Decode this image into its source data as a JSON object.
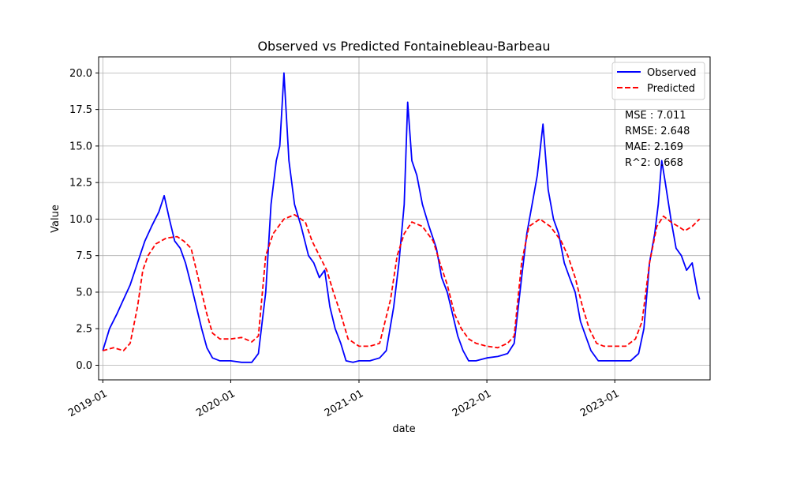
{
  "chart_data": {
    "type": "line",
    "title": "Observed vs Predicted Fontainebleau-Barbeau",
    "xlabel": "date",
    "ylabel": "Value",
    "x_range": [
      "2018-12-20",
      "2023-09-30"
    ],
    "ylim": [
      -1.0,
      21.1
    ],
    "grid": true,
    "legend_position": "top-right",
    "x_ticks": [
      {
        "date": "2019-01-01",
        "label": "2019-01"
      },
      {
        "date": "2020-01-01",
        "label": "2020-01"
      },
      {
        "date": "2021-01-01",
        "label": "2021-01"
      },
      {
        "date": "2022-01-01",
        "label": "2022-01"
      },
      {
        "date": "2023-01-01",
        "label": "2023-01"
      }
    ],
    "y_ticks": [
      {
        "value": 0,
        "label": "0.0"
      },
      {
        "value": 2.5,
        "label": "2.5"
      },
      {
        "value": 5,
        "label": "5.0"
      },
      {
        "value": 7.5,
        "label": "7.5"
      },
      {
        "value": 10,
        "label": "10.0"
      },
      {
        "value": 12.5,
        "label": "12.5"
      },
      {
        "value": 15,
        "label": "15.0"
      },
      {
        "value": 17.5,
        "label": "17.5"
      },
      {
        "value": 20,
        "label": "20.0"
      }
    ],
    "metrics": [
      "MSE : 7.011",
      "RMSE: 2.648",
      "MAE: 2.169",
      "R^2: 0.668"
    ],
    "series": [
      {
        "name": "Observed",
        "color": "#0000ff",
        "style": "solid",
        "points": [
          [
            "2019-01-01",
            1.0
          ],
          [
            "2019-01-20",
            2.5
          ],
          [
            "2019-02-10",
            3.5
          ],
          [
            "2019-03-01",
            4.5
          ],
          [
            "2019-03-20",
            5.5
          ],
          [
            "2019-04-10",
            7.0
          ],
          [
            "2019-05-01",
            8.5
          ],
          [
            "2019-05-20",
            9.5
          ],
          [
            "2019-06-10",
            10.5
          ],
          [
            "2019-06-25",
            11.6
          ],
          [
            "2019-07-10",
            10.0
          ],
          [
            "2019-07-25",
            8.5
          ],
          [
            "2019-08-10",
            8.0
          ],
          [
            "2019-08-25",
            7.0
          ],
          [
            "2019-09-10",
            5.5
          ],
          [
            "2019-09-25",
            4.0
          ],
          [
            "2019-10-10",
            2.5
          ],
          [
            "2019-10-25",
            1.2
          ],
          [
            "2019-11-10",
            0.5
          ],
          [
            "2019-12-01",
            0.3
          ],
          [
            "2020-01-01",
            0.3
          ],
          [
            "2020-02-01",
            0.2
          ],
          [
            "2020-03-01",
            0.2
          ],
          [
            "2020-03-20",
            0.8
          ],
          [
            "2020-04-10",
            5.0
          ],
          [
            "2020-04-25",
            11.0
          ],
          [
            "2020-05-10",
            14.0
          ],
          [
            "2020-05-20",
            15.0
          ],
          [
            "2020-06-01",
            20.0
          ],
          [
            "2020-06-15",
            14.0
          ],
          [
            "2020-07-01",
            11.0
          ],
          [
            "2020-07-20",
            9.5
          ],
          [
            "2020-08-10",
            7.5
          ],
          [
            "2020-08-25",
            7.0
          ],
          [
            "2020-09-10",
            6.0
          ],
          [
            "2020-09-25",
            6.5
          ],
          [
            "2020-10-10",
            4.0
          ],
          [
            "2020-10-25",
            2.5
          ],
          [
            "2020-11-10",
            1.5
          ],
          [
            "2020-11-25",
            0.3
          ],
          [
            "2020-12-15",
            0.2
          ],
          [
            "2021-01-01",
            0.3
          ],
          [
            "2021-02-01",
            0.3
          ],
          [
            "2021-03-01",
            0.5
          ],
          [
            "2021-03-20",
            1.0
          ],
          [
            "2021-04-10",
            4.0
          ],
          [
            "2021-04-25",
            7.0
          ],
          [
            "2021-05-10",
            11.0
          ],
          [
            "2021-05-20",
            18.0
          ],
          [
            "2021-06-01",
            14.0
          ],
          [
            "2021-06-15",
            13.0
          ],
          [
            "2021-07-01",
            11.0
          ],
          [
            "2021-07-20",
            9.5
          ],
          [
            "2021-08-10",
            8.0
          ],
          [
            "2021-08-25",
            6.0
          ],
          [
            "2021-09-10",
            5.0
          ],
          [
            "2021-09-25",
            3.5
          ],
          [
            "2021-10-10",
            2.0
          ],
          [
            "2021-10-25",
            1.0
          ],
          [
            "2021-11-10",
            0.3
          ],
          [
            "2021-12-01",
            0.3
          ],
          [
            "2022-01-01",
            0.5
          ],
          [
            "2022-02-01",
            0.6
          ],
          [
            "2022-03-01",
            0.8
          ],
          [
            "2022-03-20",
            1.5
          ],
          [
            "2022-04-10",
            6.0
          ],
          [
            "2022-04-25",
            9.0
          ],
          [
            "2022-05-10",
            11.0
          ],
          [
            "2022-05-25",
            13.0
          ],
          [
            "2022-06-10",
            16.5
          ],
          [
            "2022-06-25",
            12.0
          ],
          [
            "2022-07-10",
            10.0
          ],
          [
            "2022-07-25",
            9.0
          ],
          [
            "2022-08-10",
            7.0
          ],
          [
            "2022-08-25",
            6.0
          ],
          [
            "2022-09-10",
            5.0
          ],
          [
            "2022-09-25",
            3.0
          ],
          [
            "2022-10-10",
            2.0
          ],
          [
            "2022-10-25",
            1.0
          ],
          [
            "2022-11-15",
            0.3
          ],
          [
            "2022-12-15",
            0.3
          ],
          [
            "2023-01-15",
            0.3
          ],
          [
            "2023-02-15",
            0.3
          ],
          [
            "2023-03-10",
            0.8
          ],
          [
            "2023-03-25",
            2.5
          ],
          [
            "2023-04-10",
            7.0
          ],
          [
            "2023-04-25",
            9.0
          ],
          [
            "2023-05-05",
            11.0
          ],
          [
            "2023-05-15",
            14.0
          ],
          [
            "2023-05-25",
            12.5
          ],
          [
            "2023-06-10",
            10.0
          ],
          [
            "2023-06-25",
            8.0
          ],
          [
            "2023-07-10",
            7.5
          ],
          [
            "2023-07-25",
            6.5
          ],
          [
            "2023-08-10",
            7.0
          ],
          [
            "2023-08-25",
            5.0
          ],
          [
            "2023-08-31",
            4.5
          ]
        ]
      },
      {
        "name": "Predicted",
        "color": "#ff0000",
        "style": "dashed",
        "points": [
          [
            "2019-01-01",
            1.0
          ],
          [
            "2019-02-01",
            1.2
          ],
          [
            "2019-03-01",
            1.0
          ],
          [
            "2019-03-20",
            1.5
          ],
          [
            "2019-04-10",
            4.0
          ],
          [
            "2019-04-25",
            6.5
          ],
          [
            "2019-05-10",
            7.5
          ],
          [
            "2019-06-01",
            8.3
          ],
          [
            "2019-07-01",
            8.7
          ],
          [
            "2019-08-01",
            8.8
          ],
          [
            "2019-08-20",
            8.5
          ],
          [
            "2019-09-10",
            8.0
          ],
          [
            "2019-09-25",
            6.5
          ],
          [
            "2019-10-10",
            5.0
          ],
          [
            "2019-10-25",
            3.5
          ],
          [
            "2019-11-10",
            2.2
          ],
          [
            "2019-12-01",
            1.8
          ],
          [
            "2020-01-01",
            1.8
          ],
          [
            "2020-02-01",
            1.9
          ],
          [
            "2020-03-01",
            1.6
          ],
          [
            "2020-03-20",
            2.0
          ],
          [
            "2020-04-10",
            7.5
          ],
          [
            "2020-05-01",
            9.0
          ],
          [
            "2020-06-01",
            10.0
          ],
          [
            "2020-07-01",
            10.3
          ],
          [
            "2020-08-01",
            9.8
          ],
          [
            "2020-08-20",
            8.5
          ],
          [
            "2020-09-10",
            7.5
          ],
          [
            "2020-10-01",
            6.5
          ],
          [
            "2020-10-20",
            5.0
          ],
          [
            "2020-11-10",
            3.5
          ],
          [
            "2020-12-01",
            1.8
          ],
          [
            "2021-01-01",
            1.3
          ],
          [
            "2021-02-01",
            1.3
          ],
          [
            "2021-03-01",
            1.5
          ],
          [
            "2021-04-01",
            4.5
          ],
          [
            "2021-04-20",
            7.5
          ],
          [
            "2021-05-10",
            9.0
          ],
          [
            "2021-06-01",
            9.8
          ],
          [
            "2021-07-01",
            9.5
          ],
          [
            "2021-08-01",
            8.5
          ],
          [
            "2021-08-20",
            7.0
          ],
          [
            "2021-09-10",
            5.5
          ],
          [
            "2021-10-01",
            3.5
          ],
          [
            "2021-10-20",
            2.5
          ],
          [
            "2021-11-10",
            1.8
          ],
          [
            "2021-12-01",
            1.5
          ],
          [
            "2022-01-01",
            1.3
          ],
          [
            "2022-02-01",
            1.2
          ],
          [
            "2022-03-01",
            1.5
          ],
          [
            "2022-03-20",
            2.0
          ],
          [
            "2022-04-10",
            7.0
          ],
          [
            "2022-05-01",
            9.5
          ],
          [
            "2022-06-01",
            10.0
          ],
          [
            "2022-07-01",
            9.5
          ],
          [
            "2022-08-01",
            8.5
          ],
          [
            "2022-08-20",
            7.5
          ],
          [
            "2022-09-10",
            6.0
          ],
          [
            "2022-10-01",
            4.0
          ],
          [
            "2022-10-20",
            2.5
          ],
          [
            "2022-11-10",
            1.5
          ],
          [
            "2022-12-01",
            1.3
          ],
          [
            "2023-01-01",
            1.3
          ],
          [
            "2023-02-01",
            1.3
          ],
          [
            "2023-03-01",
            1.8
          ],
          [
            "2023-03-20",
            3.0
          ],
          [
            "2023-04-10",
            7.0
          ],
          [
            "2023-05-01",
            9.5
          ],
          [
            "2023-05-20",
            10.2
          ],
          [
            "2023-06-10",
            9.8
          ],
          [
            "2023-07-01",
            9.5
          ],
          [
            "2023-07-20",
            9.2
          ],
          [
            "2023-08-10",
            9.5
          ],
          [
            "2023-08-31",
            10.0
          ]
        ]
      }
    ]
  }
}
